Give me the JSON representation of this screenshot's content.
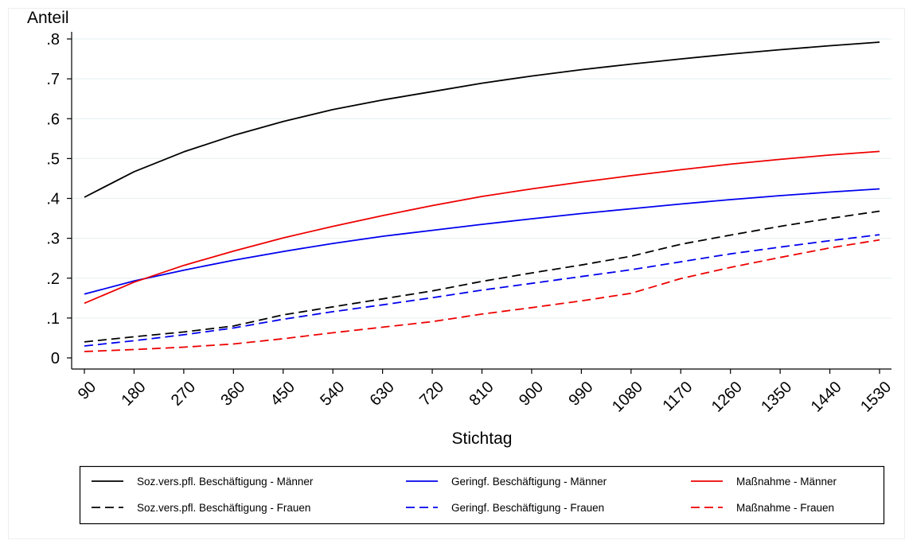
{
  "chart_data": {
    "type": "line",
    "xlabel": "Stichtag",
    "ylabel": "Anteil",
    "x": [
      90,
      180,
      270,
      360,
      450,
      540,
      630,
      720,
      810,
      900,
      990,
      1080,
      1170,
      1260,
      1350,
      1440,
      1530
    ],
    "xticks": [
      "90",
      "180",
      "270",
      "360",
      "450",
      "540",
      "630",
      "720",
      "810",
      "900",
      "990",
      "1080",
      "1170",
      "1260",
      "1350",
      "1440",
      "1530"
    ],
    "ylim": [
      0,
      0.8
    ],
    "yticks": [
      0,
      0.1,
      0.2,
      0.3,
      0.4,
      0.5,
      0.6,
      0.7,
      0.8
    ],
    "ytick_labels": [
      "0",
      ".1",
      ".2",
      ".3",
      ".4",
      ".5",
      ".6",
      ".7",
      ".8"
    ],
    "grid": "horizontal",
    "legend_position": "bottom",
    "series": [
      {
        "name": "Soz.vers.pfl. Beschäftigung - Männer",
        "color": "#000000",
        "dash": "solid",
        "values": [
          0.403,
          0.467,
          0.517,
          0.558,
          0.593,
          0.623,
          0.647,
          0.668,
          0.689,
          0.707,
          0.723,
          0.737,
          0.75,
          0.762,
          0.773,
          0.783,
          0.792
        ]
      },
      {
        "name": "Soz.vers.pfl. Beschäftigung - Frauen",
        "color": "#000000",
        "dash": "dashed",
        "values": [
          0.04,
          0.053,
          0.065,
          0.08,
          0.108,
          0.128,
          0.148,
          0.168,
          0.192,
          0.213,
          0.233,
          0.255,
          0.285,
          0.308,
          0.33,
          0.35,
          0.368
        ]
      },
      {
        "name": "Geringf. Beschäftigung - Männer",
        "color": "#0000ee",
        "dash": "solid",
        "values": [
          0.16,
          0.193,
          0.22,
          0.245,
          0.267,
          0.287,
          0.305,
          0.32,
          0.335,
          0.349,
          0.362,
          0.374,
          0.386,
          0.397,
          0.407,
          0.416,
          0.424
        ]
      },
      {
        "name": "Geringf. Beschäftigung - Frauen",
        "color": "#0000ee",
        "dash": "dashed",
        "values": [
          0.03,
          0.043,
          0.058,
          0.075,
          0.097,
          0.116,
          0.133,
          0.151,
          0.17,
          0.187,
          0.204,
          0.221,
          0.241,
          0.261,
          0.278,
          0.294,
          0.309
        ]
      },
      {
        "name": "Maßnahme - Männer",
        "color": "#ee0000",
        "dash": "solid",
        "values": [
          0.137,
          0.19,
          0.232,
          0.268,
          0.301,
          0.33,
          0.357,
          0.382,
          0.405,
          0.424,
          0.441,
          0.457,
          0.472,
          0.486,
          0.498,
          0.509,
          0.518
        ]
      },
      {
        "name": "Maßnahme - Frauen",
        "color": "#ee0000",
        "dash": "dashed",
        "values": [
          0.016,
          0.021,
          0.027,
          0.035,
          0.048,
          0.063,
          0.077,
          0.091,
          0.11,
          0.126,
          0.143,
          0.162,
          0.199,
          0.227,
          0.252,
          0.276,
          0.296
        ]
      }
    ]
  }
}
